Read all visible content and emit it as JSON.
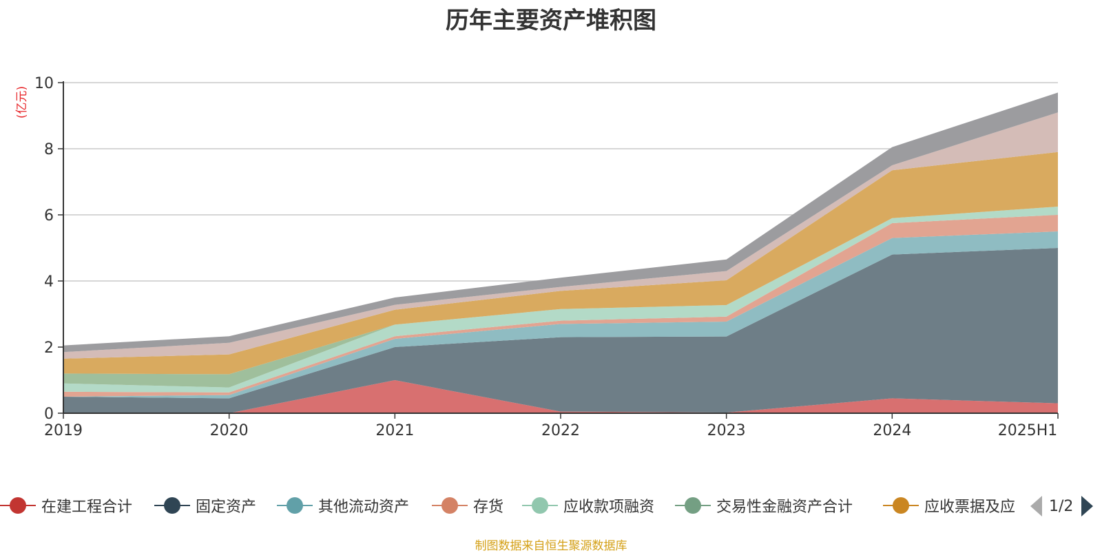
{
  "chart_data": {
    "type": "area",
    "title": "历年主要资产堆积图",
    "ylabel": "(亿元)",
    "xlabel": "",
    "ylim": [
      0,
      10
    ],
    "yticks": [
      0,
      2,
      4,
      6,
      8,
      10
    ],
    "stacked": true,
    "grid": true,
    "categories": [
      "2019",
      "2020",
      "2021",
      "2022",
      "2023",
      "2024",
      "2025H1"
    ],
    "series": [
      {
        "name": "在建工程合计",
        "color": "#d87070",
        "values": [
          0.0,
          0.0,
          1.0,
          0.05,
          0.02,
          0.45,
          0.3
        ]
      },
      {
        "name": "固定资产",
        "color": "#6e7e87",
        "values": [
          0.5,
          0.45,
          1.0,
          2.25,
          2.3,
          4.35,
          4.7
        ]
      },
      {
        "name": "其他流动资产",
        "color": "#8fbcc2",
        "values": [
          0.0,
          0.1,
          0.25,
          0.4,
          0.45,
          0.5,
          0.5
        ]
      },
      {
        "name": "存货",
        "color": "#e2a491",
        "values": [
          0.15,
          0.08,
          0.08,
          0.1,
          0.15,
          0.45,
          0.5
        ]
      },
      {
        "name": "应收款项融资",
        "color": "#b3dac7",
        "values": [
          0.25,
          0.15,
          0.35,
          0.35,
          0.35,
          0.15,
          0.25
        ]
      },
      {
        "name": "交易性金融资产合计",
        "color": "#9fbf9c",
        "values": [
          0.3,
          0.4,
          0.0,
          0.0,
          0.0,
          0.0,
          0.0
        ]
      },
      {
        "name": "应收票据及应收账款",
        "color": "#d9aa5f",
        "values": [
          0.45,
          0.6,
          0.45,
          0.55,
          0.75,
          1.45,
          1.65
        ]
      },
      {
        "name": "",
        "color": "#d4bcb7",
        "values": [
          0.2,
          0.35,
          0.15,
          0.12,
          0.28,
          0.15,
          1.2
        ]
      },
      {
        "name": "",
        "color": "#9c9c9f",
        "values": [
          0.2,
          0.2,
          0.22,
          0.28,
          0.35,
          0.55,
          0.6
        ]
      }
    ]
  },
  "legend": {
    "items": [
      {
        "label": "在建工程合计",
        "color": "#c23531"
      },
      {
        "label": "固定资产",
        "color": "#2f4554"
      },
      {
        "label": "其他流动资产",
        "color": "#61a0a8"
      },
      {
        "label": "存货",
        "color": "#d48265"
      },
      {
        "label": "应收款项融资",
        "color": "#91c7ae"
      },
      {
        "label": "交易性金融资产合计",
        "color": "#749f83"
      },
      {
        "label": "应收票据及应",
        "color": "#ca8622"
      }
    ],
    "page_indicator": "1/2"
  },
  "source_note": "制图数据来自恒生聚源数据库"
}
